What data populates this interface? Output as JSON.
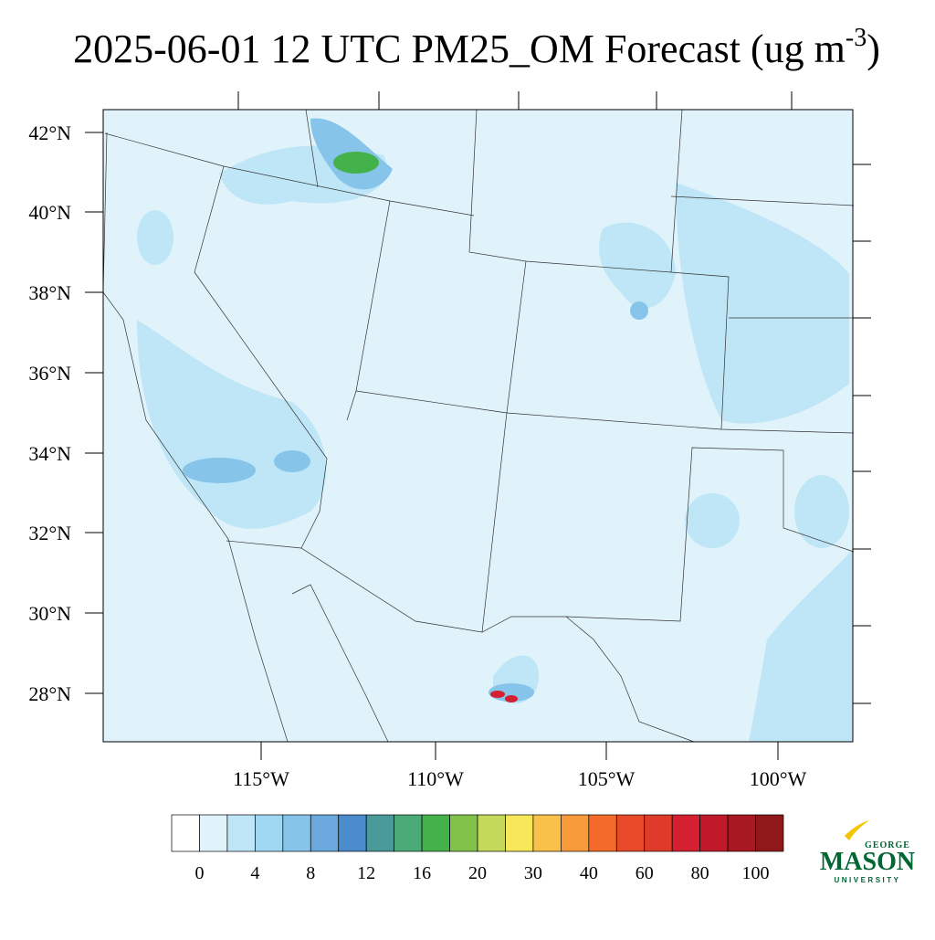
{
  "title": {
    "main": "2025-06-01 12 UTC PM25_OM Forecast (ug m",
    "sup": "-3",
    "end": ")"
  },
  "lat_labels": [
    "42°N",
    "40°N",
    "38°N",
    "36°N",
    "34°N",
    "32°N",
    "30°N",
    "28°N"
  ],
  "lon_labels": [
    "115°W",
    "110°W",
    "105°W",
    "100°W"
  ],
  "colorbar": {
    "colors": [
      "#ffffff",
      "#e0f3fb",
      "#bfe6f7",
      "#a0d8f3",
      "#86c4ea",
      "#6aa8de",
      "#4a8ccc",
      "#4a9a9a",
      "#4aaa78",
      "#44b24a",
      "#82c24a",
      "#c4d85a",
      "#f7e85a",
      "#f9c04a",
      "#f79a3a",
      "#f46a2a",
      "#e84a2a",
      "#df3a2a",
      "#d42030",
      "#c01a2a",
      "#a81820",
      "#901818"
    ],
    "labels": [
      0,
      4,
      8,
      12,
      16,
      20,
      30,
      40,
      60,
      80,
      100
    ]
  },
  "logo": {
    "top": "GEORGE",
    "main": "MASON",
    "bottom": "UNIVERSITY"
  }
}
